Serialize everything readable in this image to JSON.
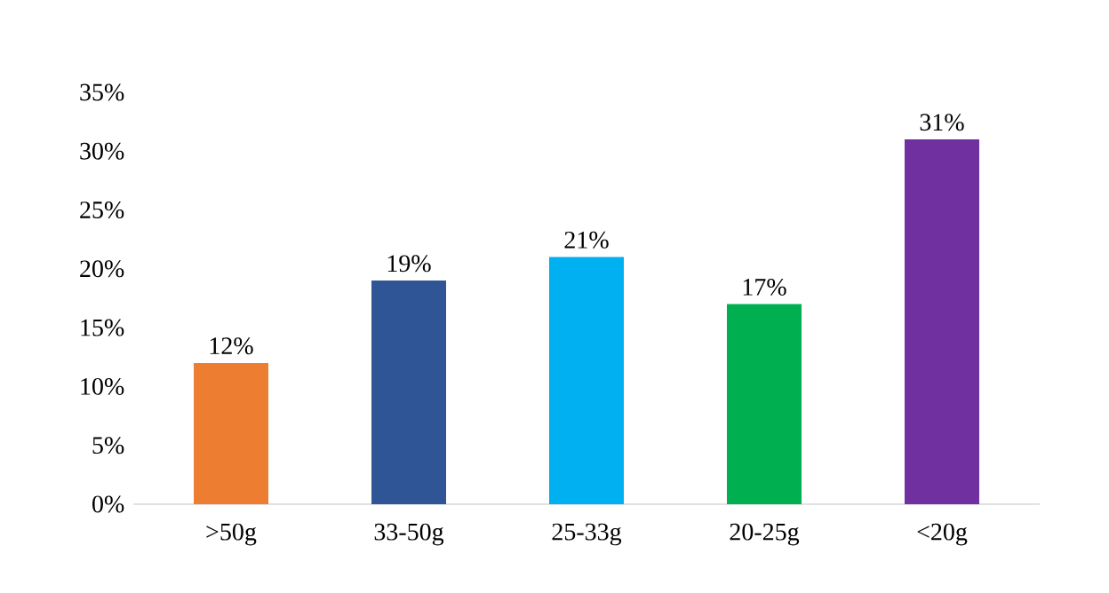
{
  "chart_data": {
    "type": "bar",
    "categories": [
      ">50g",
      "33-50g",
      "25-33g",
      "20-25g",
      "<20g"
    ],
    "values": [
      12,
      19,
      21,
      17,
      31
    ],
    "colors": [
      "#ed7d31",
      "#2f5597",
      "#00b0f0",
      "#00b050",
      "#7030a0"
    ],
    "value_labels": [
      "12%",
      "19%",
      "21%",
      "17%",
      "31%"
    ],
    "ylim": [
      0,
      35
    ],
    "yticks": [
      {
        "value": 0,
        "label": "0%"
      },
      {
        "value": 5,
        "label": "5%"
      },
      {
        "value": 10,
        "label": "10%"
      },
      {
        "value": 15,
        "label": "15%"
      },
      {
        "value": 20,
        "label": "20%"
      },
      {
        "value": 25,
        "label": "25%"
      },
      {
        "value": 30,
        "label": "30%"
      },
      {
        "value": 35,
        "label": "35%"
      }
    ]
  }
}
